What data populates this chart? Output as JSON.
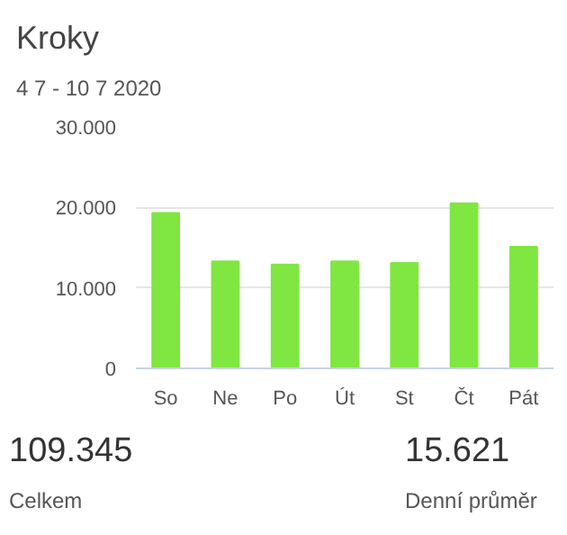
{
  "chart_data": {
    "type": "bar",
    "title": "Kroky",
    "subtitle": "4 7 - 10 7 2020",
    "categories": [
      "So",
      "Ne",
      "Po",
      "Út",
      "St",
      "Čt",
      "Pát"
    ],
    "values": [
      19300,
      13300,
      12900,
      13300,
      13100,
      20500,
      15100
    ],
    "color": "#80e641",
    "ylim": [
      0,
      30000
    ],
    "yticks": [
      {
        "value": 0,
        "label": "0"
      },
      {
        "value": 10000,
        "label": "10.000"
      },
      {
        "value": 20000,
        "label": "20.000"
      },
      {
        "value": 30000,
        "label": "30.000"
      }
    ],
    "grid": "y",
    "annotations": [
      "109.345",
      "Celkem",
      "15.621",
      "Denní průměr"
    ]
  }
}
